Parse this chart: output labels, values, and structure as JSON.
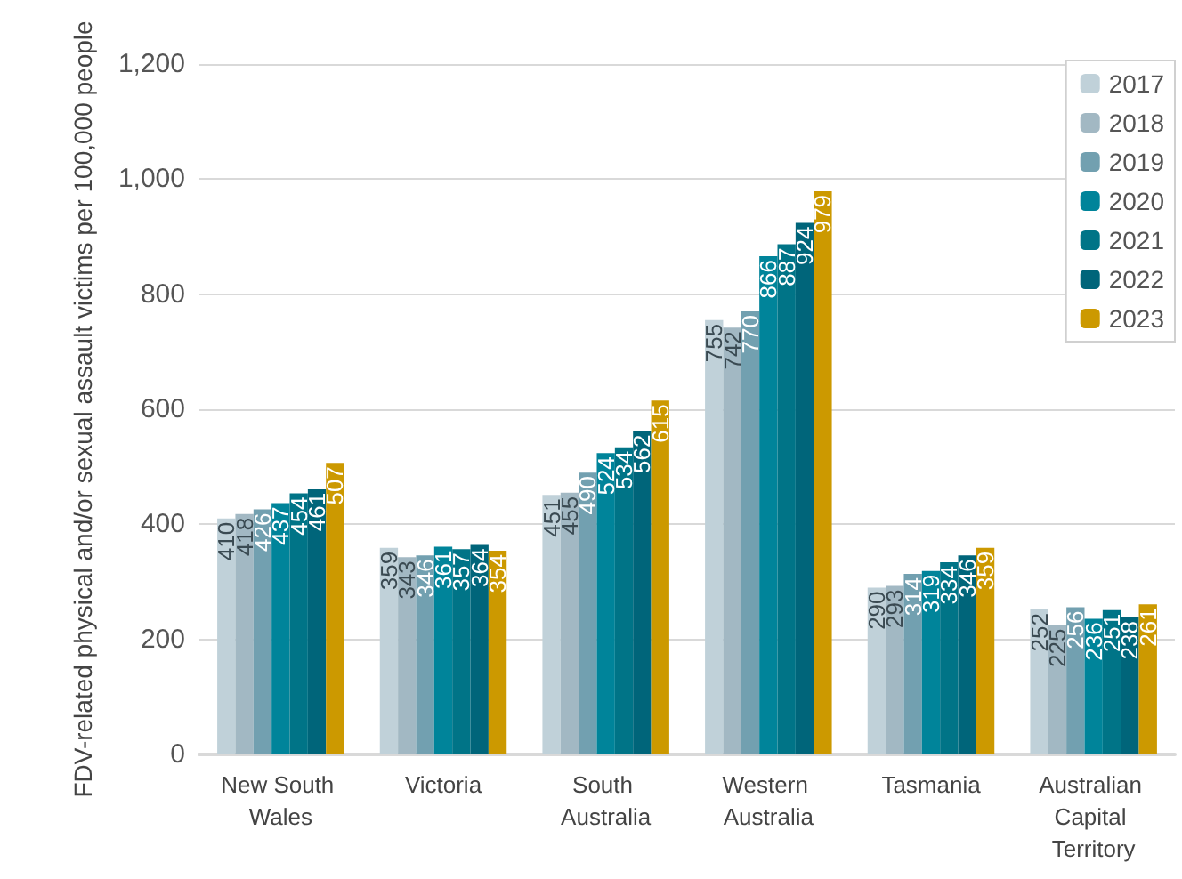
{
  "chart_data": {
    "type": "bar",
    "ylabel": "FDV-related physical and/or sexual assault victims per 100,000 people",
    "categories": [
      "New South Wales",
      "Victoria",
      "South Australia",
      "Western Australia",
      "Tasmania",
      "Australian Capital Territory"
    ],
    "series": [
      {
        "name": "2017",
        "color": "#c0d1d9",
        "values": [
          410,
          359,
          451,
          755,
          290,
          252
        ]
      },
      {
        "name": "2018",
        "color": "#a2b8c3",
        "values": [
          418,
          343,
          455,
          742,
          293,
          225
        ]
      },
      {
        "name": "2019",
        "color": "#72a0b0",
        "values": [
          426,
          346,
          490,
          770,
          314,
          256
        ]
      },
      {
        "name": "2020",
        "color": "#00849a",
        "values": [
          437,
          361,
          524,
          866,
          319,
          236
        ]
      },
      {
        "name": "2021",
        "color": "#007487",
        "values": [
          454,
          357,
          534,
          887,
          334,
          251
        ]
      },
      {
        "name": "2022",
        "color": "#00657a",
        "values": [
          461,
          364,
          562,
          924,
          346,
          238
        ]
      },
      {
        "name": "2023",
        "color": "#cc9900",
        "values": [
          507,
          354,
          615,
          979,
          359,
          261
        ]
      }
    ],
    "ylim": [
      0,
      1200
    ],
    "yticks": [
      0,
      200,
      400,
      600,
      800,
      {
        "value": 1000,
        "label": "1,000"
      },
      {
        "value": 1200,
        "label": "1,200"
      }
    ],
    "grid": "y",
    "legend": "top right",
    "data_labels": true
  }
}
